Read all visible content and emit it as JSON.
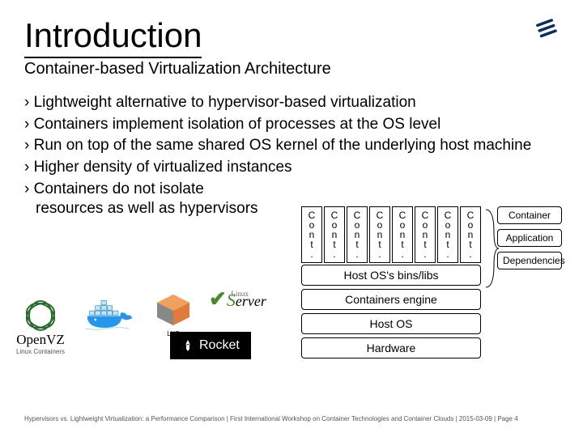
{
  "title": "Introduction",
  "subtitle": "Container-based Virtualization Architecture",
  "bullets": [
    "Lightweight alternative to hypervisor-based virtualization",
    "Containers implement isolation of processes at the OS level",
    "Run on top of the same shared OS kernel of the underlying host machine",
    "Higher density of virtualized instances",
    "Containers do not isolate resources as well as hypervisors"
  ],
  "logos": {
    "openvz": {
      "name": "OpenVZ",
      "sub": "Linux Containers"
    },
    "lxc": "LXC",
    "vserver": {
      "prefix": "V",
      "main": "Server",
      "sub": "Linux"
    },
    "rocket": "Rocket"
  },
  "diagram": {
    "container_label": "Cont.",
    "container_count": 8,
    "stack": [
      "Host OS's bins/libs",
      "Containers engine",
      "Host OS",
      "Hardware"
    ],
    "side": [
      "Container",
      "Application",
      "Dependencies"
    ]
  },
  "footer": {
    "text": "Hypervisors vs. Lightweight Virtualization: a Performance Comparison | First International Workshop on Container Technologies and Container Clouds | 2015-03-09 | Page 4"
  },
  "colors": {
    "accent": "#000000",
    "ericsson_blue": "#0b2e5e",
    "openvz_green": "#2a6b2a",
    "docker_blue": "#2496ed",
    "lxc_orange": "#e07b3c",
    "lxc_side": "#888888"
  }
}
